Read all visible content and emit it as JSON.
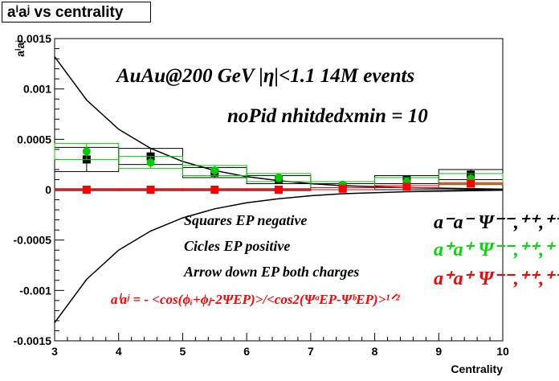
{
  "title": "aⁱaʲ vs centrality",
  "chart_data": {
    "type": "scatter",
    "xlabel": "Centrality",
    "ylabel": "aⁱaʲ",
    "xlim": [
      3,
      10
    ],
    "ylim": [
      -0.0015,
      0.0015
    ],
    "x_ticks": [
      "3",
      "4",
      "5",
      "6",
      "7",
      "8",
      "9",
      "10"
    ],
    "y_ticks": [
      "-0.0015",
      "-0.001",
      "-0.0005",
      "0",
      "0.0005",
      "0.001",
      "0.0015"
    ],
    "series": [
      {
        "name": "Squares EP negative",
        "color": "#000000",
        "marker": "square",
        "x": [
          3.5,
          4.5,
          5.5,
          6.5,
          7.5,
          8.5,
          9.5
        ],
        "y": [
          0.0003,
          0.00033,
          0.00017,
          0.0001,
          3e-05,
          0.0001,
          0.00015
        ],
        "err": [
          0.00012,
          8e-05,
          5e-05,
          4e-05,
          3e-05,
          4e-05,
          5e-05
        ]
      },
      {
        "name": "Cicles EP positive",
        "color": "#00cc00",
        "marker": "circle",
        "x": [
          3.5,
          4.5,
          5.5,
          6.5,
          7.5,
          8.5,
          9.5
        ],
        "y": [
          0.00038,
          0.00027,
          0.00019,
          0.00012,
          5e-05,
          8e-05,
          0.00011
        ],
        "err": [
          8e-05,
          6e-05,
          5e-05,
          4e-05,
          3e-05,
          4e-05,
          5e-05
        ]
      },
      {
        "name": "Arrow down EP both charges",
        "color": "#ff0000",
        "marker": "square",
        "x": [
          3.5,
          4.5,
          5.5,
          6.5,
          7.5,
          8.5,
          9.5
        ],
        "y": [
          0.0,
          0.0,
          0.0,
          0.0,
          1e-05,
          3e-05,
          6e-05
        ],
        "err": [
          1e-05,
          1e-05,
          1e-05,
          1e-05,
          1e-05,
          1e-05,
          1e-05
        ]
      }
    ],
    "curves": {
      "upper": {
        "x": [
          3.0,
          3.5,
          4.0,
          4.5,
          5.0,
          5.5,
          6.0,
          6.5,
          7.0,
          7.5,
          8.0,
          8.5,
          9.0,
          9.5,
          10.0
        ],
        "y": [
          0.00132,
          0.00089,
          0.0006,
          0.00041,
          0.00028,
          0.00019,
          0.00013,
          9e-05,
          6e-05,
          4e-05,
          3e-05,
          2e-05,
          1.5e-05,
          1e-05,
          5e-06
        ]
      },
      "lower": {
        "x": [
          3.0,
          3.5,
          4.0,
          4.5,
          5.0,
          5.5,
          6.0,
          6.5,
          7.0,
          7.5,
          8.0,
          8.5,
          9.0,
          9.5,
          10.0
        ],
        "y": [
          -0.00132,
          -0.00089,
          -0.0006,
          -0.00041,
          -0.00028,
          -0.00019,
          -0.00013,
          -9e-05,
          -6e-05,
          -4e-05,
          -3e-05,
          -2e-05,
          -1.5e-05,
          -1e-05,
          -5e-06
        ]
      }
    },
    "annotations": {
      "header1": "AuAu@200 GeV |η|<1.1 14M events",
      "header2": "noPid nhitdedxmin = 10",
      "legend1": "Squares EP negative",
      "legend2": "Cicles EP positive",
      "legend3": "Arrow down EP both charges",
      "formula": "aⁱaʲ = - <cos(ϕᵢ+ϕⱼ-2ΨEP)>/<cos2(ΨᵃEP-ΨᵇEP)>¹ᐟ²",
      "label_neg": "a⁻a⁻ Ψ⁻⁻,⁺⁺,⁺⁻",
      "label_pos": "a⁺a⁺ Ψ⁻⁻,⁺⁺,⁺",
      "label_both": "a⁺a⁺ Ψ⁻⁻,⁺⁺,⁺⁻"
    }
  }
}
